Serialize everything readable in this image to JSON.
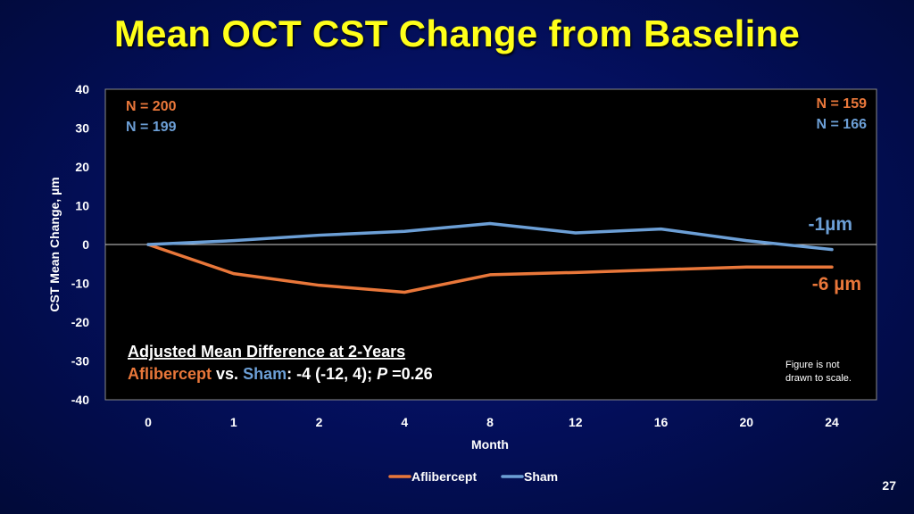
{
  "slide": {
    "title": "Mean OCT CST Change from Baseline",
    "page_number": "27"
  },
  "colors": {
    "aflibercept": "#e9773a",
    "sham": "#6c9fd6",
    "background": "#030e57",
    "title": "#ffff1a"
  },
  "chart_data": {
    "type": "line",
    "title": "",
    "xlabel": "Month",
    "ylabel": "CST Mean Change, µm",
    "ylim": [
      -40,
      40
    ],
    "y_ticks": [
      "40",
      "30",
      "20",
      "10",
      "0",
      "-10",
      "-20",
      "-30",
      "-40"
    ],
    "categories": [
      "0",
      "1",
      "2",
      "4",
      "8",
      "12",
      "16",
      "20",
      "24"
    ],
    "series": [
      {
        "name": "Aflibercept",
        "color": "#e9773a",
        "values": [
          0,
          -7.5,
          -10.5,
          -12.3,
          -7.8,
          -7.2,
          -6.5,
          -5.8,
          -5.8
        ]
      },
      {
        "name": "Sham",
        "color": "#6c9fd6",
        "values": [
          0,
          1.0,
          2.4,
          3.4,
          5.4,
          3.0,
          4.0,
          1.0,
          -1.3
        ]
      }
    ],
    "grid": false,
    "legend": "bottom",
    "annotations": {
      "n_start_afl": "N = 200",
      "n_start_sham": "N = 199",
      "n_end_afl": "N = 159",
      "n_end_sham": "N = 166",
      "end_sham": "-1µm",
      "end_afl": "-6 µm",
      "diff_heading": "Adjusted Mean Difference at 2-Years",
      "diff_afl": "Aflibercept",
      "diff_vs": " vs. ",
      "diff_sham": "Sham",
      "diff_value": ": -4 (-12, 4); ",
      "diff_p": "P",
      "diff_p_value": " =0.26",
      "note_line1": "Figure is not",
      "note_line2": "drawn to scale."
    }
  }
}
